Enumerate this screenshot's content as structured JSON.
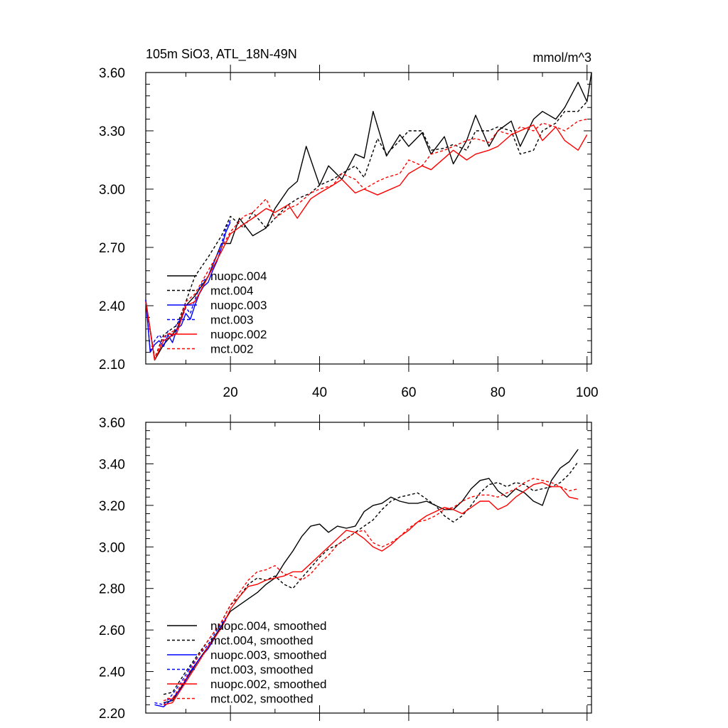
{
  "chart_data": [
    {
      "type": "line",
      "title": "105m SiO3, ATL_18N-49N",
      "units": "mmol/m^3",
      "xlim": [
        1,
        101
      ],
      "ylim": [
        2.1,
        3.6
      ],
      "yticks": [
        "2.10",
        "2.40",
        "2.70",
        "3.00",
        "3.30",
        "3.60"
      ],
      "xticks": [
        "20",
        "40",
        "60",
        "80",
        "100"
      ],
      "legend_position": "lower-left",
      "series": [
        {
          "name": "nuopc.004",
          "color": "#000000",
          "dash": "solid",
          "x": [
            1,
            3,
            5,
            8,
            10,
            12,
            15,
            18,
            20,
            22,
            25,
            28,
            30,
            33,
            35,
            37,
            40,
            42,
            45,
            48,
            50,
            52,
            55,
            58,
            60,
            63,
            65,
            68,
            70,
            73,
            75,
            78,
            80,
            83,
            85,
            88,
            90,
            93,
            95,
            98,
            100,
            101
          ],
          "y": [
            2.43,
            2.12,
            2.2,
            2.28,
            2.4,
            2.45,
            2.55,
            2.72,
            2.72,
            2.85,
            2.76,
            2.8,
            2.9,
            3.0,
            3.04,
            3.22,
            3.02,
            3.12,
            3.05,
            3.18,
            3.16,
            3.4,
            3.17,
            3.28,
            3.22,
            3.29,
            3.18,
            3.27,
            3.13,
            3.25,
            3.38,
            3.22,
            3.3,
            3.35,
            3.22,
            3.36,
            3.4,
            3.36,
            3.42,
            3.55,
            3.45,
            3.6
          ]
        },
        {
          "name": "mct.004",
          "color": "#000000",
          "dash": "dashed",
          "x": [
            1,
            3,
            5,
            8,
            10,
            12,
            15,
            18,
            20,
            23,
            25,
            28,
            30,
            33,
            35,
            38,
            40,
            43,
            45,
            48,
            50,
            53,
            55,
            58,
            60,
            63,
            65,
            68,
            70,
            73,
            75,
            78,
            80,
            83,
            85,
            88,
            90,
            93,
            95,
            98,
            100
          ],
          "y": [
            2.42,
            2.13,
            2.25,
            2.3,
            2.42,
            2.55,
            2.65,
            2.76,
            2.86,
            2.8,
            2.88,
            2.8,
            2.85,
            2.92,
            2.95,
            2.98,
            3.02,
            3.05,
            3.08,
            3.12,
            3.06,
            3.26,
            3.18,
            3.25,
            3.3,
            3.3,
            3.2,
            3.21,
            3.23,
            3.2,
            3.3,
            3.3,
            3.32,
            3.3,
            3.18,
            3.2,
            3.3,
            3.34,
            3.4,
            3.4,
            3.45
          ]
        },
        {
          "name": "nuopc.003",
          "color": "#0000ff",
          "dash": "solid",
          "x": [
            1,
            2,
            3,
            4,
            5,
            6,
            7,
            8,
            9,
            10,
            11,
            12,
            13,
            14,
            15,
            16,
            17,
            18,
            19,
            20
          ],
          "y": [
            2.43,
            2.16,
            2.2,
            2.22,
            2.19,
            2.25,
            2.21,
            2.28,
            2.3,
            2.36,
            2.33,
            2.4,
            2.46,
            2.5,
            2.52,
            2.58,
            2.63,
            2.7,
            2.78,
            2.83
          ]
        },
        {
          "name": "mct.003",
          "color": "#0000ff",
          "dash": "dashed",
          "x": [
            1,
            2,
            3,
            4,
            5,
            6,
            7,
            8,
            9,
            10,
            11,
            12,
            13,
            14,
            15,
            16,
            17,
            18,
            19,
            20
          ],
          "y": [
            2.43,
            2.17,
            2.22,
            2.25,
            2.22,
            2.27,
            2.24,
            2.31,
            2.33,
            2.39,
            2.36,
            2.43,
            2.49,
            2.53,
            2.55,
            2.61,
            2.66,
            2.72,
            2.8,
            2.84
          ]
        },
        {
          "name": "nuopc.002",
          "color": "#ff0000",
          "dash": "solid",
          "x": [
            1,
            3,
            5,
            8,
            10,
            12,
            15,
            18,
            20,
            23,
            25,
            28,
            30,
            33,
            35,
            38,
            40,
            43,
            45,
            48,
            50,
            53,
            55,
            58,
            60,
            63,
            65,
            68,
            70,
            73,
            75,
            78,
            80,
            83,
            85,
            88,
            90,
            93,
            95,
            98,
            100
          ],
          "y": [
            2.42,
            2.12,
            2.22,
            2.26,
            2.4,
            2.42,
            2.55,
            2.68,
            2.77,
            2.82,
            2.85,
            2.9,
            2.88,
            2.92,
            2.85,
            2.95,
            2.98,
            3.02,
            3.05,
            2.98,
            3.0,
            2.97,
            2.99,
            3.02,
            3.08,
            3.12,
            3.1,
            3.16,
            3.2,
            3.15,
            3.18,
            3.2,
            3.22,
            3.28,
            3.3,
            3.33,
            3.25,
            3.32,
            3.25,
            3.2,
            3.28
          ]
        },
        {
          "name": "mct.002",
          "color": "#ff0000",
          "dash": "dashed",
          "x": [
            1,
            3,
            5,
            8,
            10,
            12,
            15,
            18,
            20,
            23,
            25,
            28,
            30,
            33,
            35,
            38,
            40,
            43,
            45,
            48,
            50,
            53,
            55,
            58,
            60,
            63,
            65,
            68,
            70,
            73,
            75,
            78,
            80,
            83,
            85,
            88,
            90,
            93,
            95,
            98,
            100
          ],
          "y": [
            2.42,
            2.13,
            2.24,
            2.28,
            2.42,
            2.46,
            2.58,
            2.7,
            2.78,
            2.86,
            2.88,
            2.95,
            2.85,
            2.9,
            2.92,
            2.98,
            3.0,
            3.02,
            3.08,
            3.05,
            3.0,
            3.04,
            3.06,
            3.08,
            3.15,
            3.12,
            3.18,
            3.2,
            3.22,
            3.25,
            3.26,
            3.24,
            3.3,
            3.28,
            3.32,
            3.3,
            3.34,
            3.32,
            3.3,
            3.35,
            3.36
          ]
        }
      ]
    },
    {
      "type": "line",
      "xlim": [
        1,
        101
      ],
      "ylim": [
        2.2,
        3.6
      ],
      "yticks": [
        "2.20",
        "2.40",
        "2.60",
        "2.80",
        "3.00",
        "3.20",
        "3.40",
        "3.60"
      ],
      "legend_position": "lower-left",
      "series": [
        {
          "name": "nuopc.004, smoothed",
          "color": "#000000",
          "dash": "solid",
          "x": [
            5,
            7,
            10,
            13,
            15,
            18,
            20,
            22,
            24,
            26,
            28,
            30,
            32,
            34,
            36,
            38,
            40,
            42,
            44,
            46,
            48,
            50,
            52,
            54,
            56,
            58,
            60,
            62,
            64,
            66,
            68,
            70,
            72,
            74,
            76,
            78,
            80,
            82,
            84,
            86,
            88,
            90,
            92,
            94,
            96,
            98
          ],
          "y": [
            2.25,
            2.26,
            2.36,
            2.46,
            2.52,
            2.62,
            2.69,
            2.72,
            2.75,
            2.78,
            2.82,
            2.85,
            2.92,
            2.98,
            3.05,
            3.1,
            3.11,
            3.07,
            3.1,
            3.09,
            3.1,
            3.17,
            3.2,
            3.21,
            3.24,
            3.22,
            3.21,
            3.21,
            3.22,
            3.2,
            3.18,
            3.18,
            3.22,
            3.28,
            3.32,
            3.33,
            3.27,
            3.24,
            3.28,
            3.26,
            3.22,
            3.2,
            3.32,
            3.38,
            3.41,
            3.47
          ]
        },
        {
          "name": "mct.004, smoothed",
          "color": "#000000",
          "dash": "dashed",
          "x": [
            5,
            7,
            10,
            13,
            15,
            18,
            20,
            22,
            24,
            26,
            28,
            30,
            32,
            34,
            36,
            38,
            40,
            42,
            44,
            46,
            48,
            50,
            52,
            54,
            56,
            58,
            60,
            62,
            64,
            66,
            68,
            70,
            72,
            74,
            76,
            78,
            80,
            82,
            84,
            86,
            88,
            90,
            92,
            94,
            96,
            98
          ],
          "y": [
            2.29,
            2.3,
            2.4,
            2.49,
            2.55,
            2.64,
            2.72,
            2.76,
            2.82,
            2.85,
            2.84,
            2.86,
            2.82,
            2.8,
            2.85,
            2.9,
            2.95,
            2.99,
            3.01,
            3.04,
            3.07,
            3.1,
            3.13,
            3.18,
            3.22,
            3.24,
            3.25,
            3.26,
            3.23,
            3.2,
            3.15,
            3.12,
            3.15,
            3.2,
            3.26,
            3.3,
            3.31,
            3.29,
            3.31,
            3.3,
            3.27,
            3.28,
            3.29,
            3.31,
            3.35,
            3.41
          ]
        },
        {
          "name": "nuopc.003, smoothed",
          "color": "#0000ff",
          "dash": "solid",
          "x": [
            3,
            5,
            7,
            9,
            11,
            13,
            15,
            17,
            19
          ],
          "y": [
            2.24,
            2.23,
            2.27,
            2.32,
            2.4,
            2.46,
            2.51,
            2.58,
            2.65
          ]
        },
        {
          "name": "mct.003, smoothed",
          "color": "#0000ff",
          "dash": "dashed",
          "x": [
            3,
            5,
            7,
            9,
            11,
            13,
            15,
            17,
            19
          ],
          "y": [
            2.25,
            2.24,
            2.29,
            2.35,
            2.42,
            2.48,
            2.53,
            2.6,
            2.66
          ]
        },
        {
          "name": "nuopc.002, smoothed",
          "color": "#ff0000",
          "dash": "solid",
          "x": [
            5,
            7,
            10,
            13,
            15,
            18,
            20,
            22,
            24,
            26,
            28,
            30,
            32,
            34,
            36,
            38,
            40,
            42,
            44,
            46,
            48,
            50,
            52,
            54,
            56,
            58,
            60,
            62,
            64,
            66,
            68,
            70,
            72,
            74,
            76,
            78,
            80,
            82,
            84,
            86,
            88,
            90,
            92,
            94,
            96,
            98
          ],
          "y": [
            2.24,
            2.25,
            2.35,
            2.45,
            2.52,
            2.61,
            2.7,
            2.76,
            2.81,
            2.82,
            2.84,
            2.85,
            2.86,
            2.88,
            2.88,
            2.92,
            2.96,
            3.0,
            3.04,
            3.08,
            3.07,
            3.04,
            3.0,
            2.98,
            3.01,
            3.05,
            3.08,
            3.12,
            3.15,
            3.17,
            3.19,
            3.18,
            3.16,
            3.19,
            3.22,
            3.22,
            3.18,
            3.2,
            3.24,
            3.27,
            3.3,
            3.31,
            3.29,
            3.29,
            3.24,
            3.23
          ]
        },
        {
          "name": "mct.002, smoothed",
          "color": "#ff0000",
          "dash": "dashed",
          "x": [
            5,
            7,
            10,
            13,
            15,
            18,
            20,
            22,
            24,
            26,
            28,
            30,
            32,
            34,
            36,
            38,
            40,
            42,
            44,
            46,
            48,
            50,
            52,
            54,
            56,
            58,
            60,
            62,
            64,
            66,
            68,
            70,
            72,
            74,
            76,
            78,
            80,
            82,
            84,
            86,
            88,
            90,
            92,
            94,
            96,
            98
          ],
          "y": [
            2.26,
            2.27,
            2.37,
            2.48,
            2.55,
            2.64,
            2.72,
            2.78,
            2.84,
            2.88,
            2.89,
            2.91,
            2.87,
            2.86,
            2.84,
            2.87,
            2.92,
            2.96,
            3.01,
            3.04,
            3.07,
            3.08,
            3.02,
            3.0,
            3.02,
            3.05,
            3.09,
            3.12,
            3.13,
            3.15,
            3.18,
            3.19,
            3.22,
            3.24,
            3.25,
            3.25,
            3.24,
            3.26,
            3.28,
            3.31,
            3.33,
            3.32,
            3.31,
            3.29,
            3.27,
            3.28
          ]
        }
      ]
    }
  ]
}
